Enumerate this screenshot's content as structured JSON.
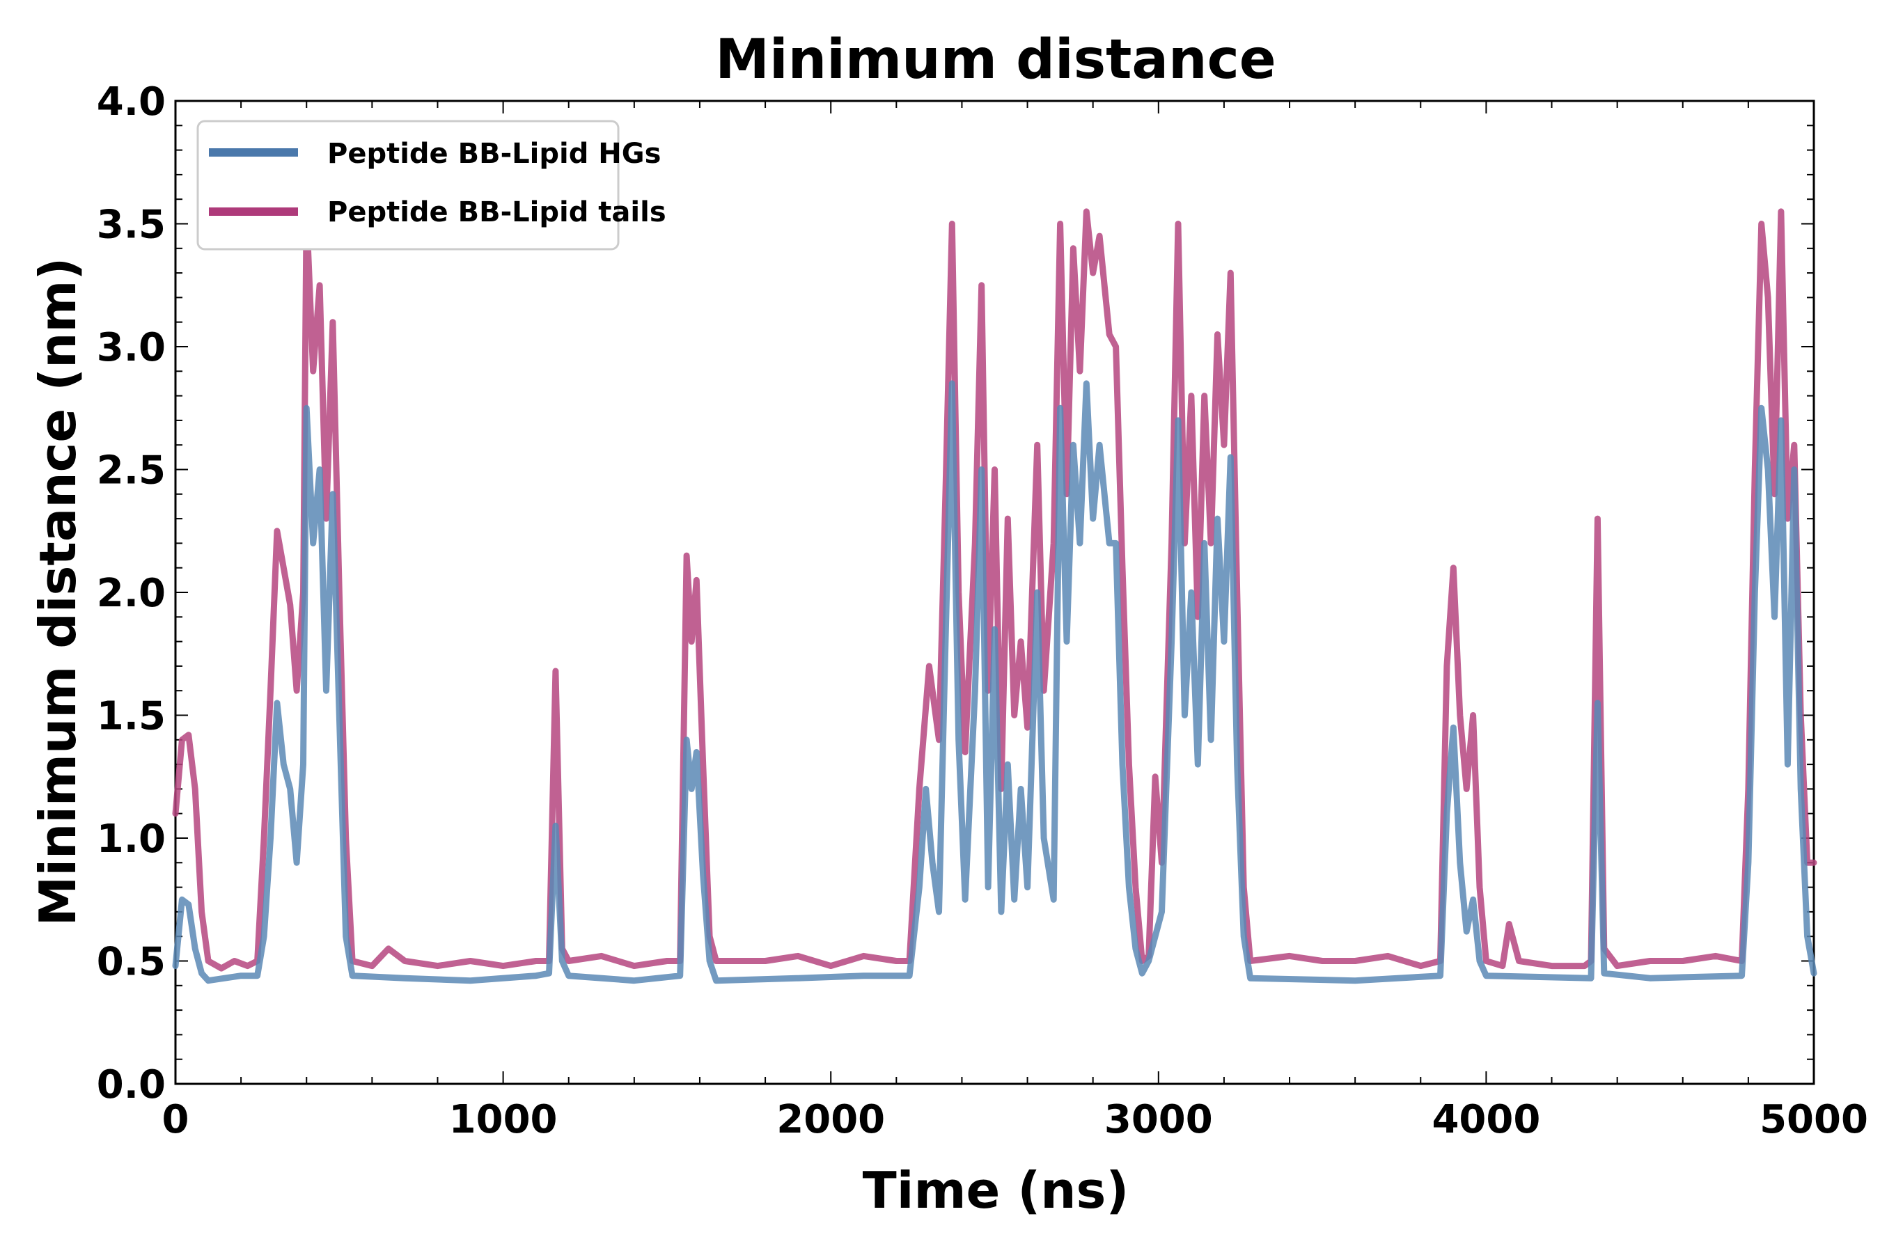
{
  "chart_data": {
    "type": "line",
    "title": "Minimum distance",
    "xlabel": "Time (ns)",
    "ylabel": "Minimum distance (nm)",
    "xlim": [
      0,
      5000
    ],
    "ylim": [
      0,
      4.0
    ],
    "x_ticks": [
      0,
      1000,
      2000,
      3000,
      4000,
      5000
    ],
    "x_tick_labels": [
      "0",
      "1000",
      "2000",
      "3000",
      "4000",
      "5000"
    ],
    "y_ticks": [
      0,
      0.5,
      1.0,
      1.5,
      2.0,
      2.5,
      3.0,
      3.5,
      4.0
    ],
    "y_tick_labels": [
      "0.0",
      "0.5",
      "1.0",
      "1.5",
      "2.0",
      "2.5",
      "3.0",
      "3.5",
      "4.0"
    ],
    "grid": false,
    "legend_position": "top-left",
    "series": [
      {
        "name": "Peptide BB-Lipid tails",
        "color": "#b5457f",
        "points": [
          [
            0,
            1.1
          ],
          [
            20,
            1.4
          ],
          [
            40,
            1.42
          ],
          [
            60,
            1.2
          ],
          [
            80,
            0.7
          ],
          [
            100,
            0.5
          ],
          [
            140,
            0.47
          ],
          [
            180,
            0.5
          ],
          [
            220,
            0.48
          ],
          [
            250,
            0.5
          ],
          [
            270,
            1.0
          ],
          [
            290,
            1.6
          ],
          [
            310,
            2.25
          ],
          [
            330,
            2.1
          ],
          [
            350,
            1.95
          ],
          [
            370,
            1.6
          ],
          [
            390,
            2.0
          ],
          [
            400,
            3.55
          ],
          [
            420,
            2.9
          ],
          [
            440,
            3.25
          ],
          [
            460,
            2.3
          ],
          [
            480,
            3.1
          ],
          [
            500,
            2.0
          ],
          [
            520,
            1.0
          ],
          [
            540,
            0.5
          ],
          [
            600,
            0.48
          ],
          [
            650,
            0.55
          ],
          [
            700,
            0.5
          ],
          [
            800,
            0.48
          ],
          [
            900,
            0.5
          ],
          [
            1000,
            0.48
          ],
          [
            1100,
            0.5
          ],
          [
            1140,
            0.5
          ],
          [
            1160,
            1.68
          ],
          [
            1180,
            0.55
          ],
          [
            1200,
            0.5
          ],
          [
            1300,
            0.52
          ],
          [
            1400,
            0.48
          ],
          [
            1500,
            0.5
          ],
          [
            1540,
            0.5
          ],
          [
            1560,
            2.15
          ],
          [
            1575,
            1.8
          ],
          [
            1590,
            2.05
          ],
          [
            1610,
            1.3
          ],
          [
            1630,
            0.6
          ],
          [
            1650,
            0.5
          ],
          [
            1800,
            0.5
          ],
          [
            1900,
            0.52
          ],
          [
            2000,
            0.48
          ],
          [
            2100,
            0.52
          ],
          [
            2200,
            0.5
          ],
          [
            2240,
            0.5
          ],
          [
            2270,
            1.2
          ],
          [
            2300,
            1.7
          ],
          [
            2330,
            1.4
          ],
          [
            2350,
            2.4
          ],
          [
            2370,
            3.5
          ],
          [
            2390,
            2.0
          ],
          [
            2410,
            1.35
          ],
          [
            2440,
            2.2
          ],
          [
            2460,
            3.25
          ],
          [
            2480,
            1.6
          ],
          [
            2500,
            2.5
          ],
          [
            2520,
            1.2
          ],
          [
            2540,
            2.3
          ],
          [
            2560,
            1.5
          ],
          [
            2580,
            1.8
          ],
          [
            2600,
            1.45
          ],
          [
            2630,
            2.6
          ],
          [
            2650,
            1.6
          ],
          [
            2680,
            2.2
          ],
          [
            2700,
            3.5
          ],
          [
            2720,
            2.4
          ],
          [
            2740,
            3.4
          ],
          [
            2760,
            2.9
          ],
          [
            2780,
            3.55
          ],
          [
            2800,
            3.3
          ],
          [
            2820,
            3.45
          ],
          [
            2850,
            3.05
          ],
          [
            2870,
            3.0
          ],
          [
            2890,
            2.1
          ],
          [
            2910,
            1.3
          ],
          [
            2930,
            0.8
          ],
          [
            2950,
            0.5
          ],
          [
            2970,
            0.52
          ],
          [
            2990,
            1.25
          ],
          [
            3010,
            0.9
          ],
          [
            3040,
            2.2
          ],
          [
            3060,
            3.5
          ],
          [
            3080,
            2.2
          ],
          [
            3100,
            2.8
          ],
          [
            3120,
            1.9
          ],
          [
            3140,
            2.8
          ],
          [
            3160,
            2.2
          ],
          [
            3180,
            3.05
          ],
          [
            3200,
            2.6
          ],
          [
            3220,
            3.3
          ],
          [
            3240,
            2.0
          ],
          [
            3260,
            0.8
          ],
          [
            3280,
            0.5
          ],
          [
            3400,
            0.52
          ],
          [
            3500,
            0.5
          ],
          [
            3600,
            0.5
          ],
          [
            3700,
            0.52
          ],
          [
            3800,
            0.48
          ],
          [
            3860,
            0.5
          ],
          [
            3880,
            1.7
          ],
          [
            3900,
            2.1
          ],
          [
            3920,
            1.5
          ],
          [
            3940,
            1.2
          ],
          [
            3960,
            1.5
          ],
          [
            3980,
            0.8
          ],
          [
            4000,
            0.5
          ],
          [
            4050,
            0.48
          ],
          [
            4070,
            0.65
          ],
          [
            4100,
            0.5
          ],
          [
            4200,
            0.48
          ],
          [
            4300,
            0.48
          ],
          [
            4320,
            0.5
          ],
          [
            4340,
            2.3
          ],
          [
            4360,
            0.55
          ],
          [
            4400,
            0.48
          ],
          [
            4500,
            0.5
          ],
          [
            4600,
            0.5
          ],
          [
            4700,
            0.52
          ],
          [
            4780,
            0.5
          ],
          [
            4800,
            1.2
          ],
          [
            4820,
            2.5
          ],
          [
            4840,
            3.5
          ],
          [
            4860,
            3.2
          ],
          [
            4880,
            2.4
          ],
          [
            4900,
            3.55
          ],
          [
            4920,
            2.3
          ],
          [
            4940,
            2.6
          ],
          [
            4960,
            1.5
          ],
          [
            4980,
            0.9
          ],
          [
            5000,
            0.9
          ]
        ]
      },
      {
        "name": "Peptide BB-Lipid HGs",
        "color": "#5b88b5",
        "points": [
          [
            0,
            0.48
          ],
          [
            20,
            0.75
          ],
          [
            40,
            0.73
          ],
          [
            60,
            0.55
          ],
          [
            80,
            0.45
          ],
          [
            100,
            0.42
          ],
          [
            200,
            0.44
          ],
          [
            250,
            0.44
          ],
          [
            270,
            0.6
          ],
          [
            290,
            1.0
          ],
          [
            310,
            1.55
          ],
          [
            330,
            1.3
          ],
          [
            350,
            1.2
          ],
          [
            370,
            0.9
          ],
          [
            390,
            1.3
          ],
          [
            400,
            2.75
          ],
          [
            420,
            2.2
          ],
          [
            440,
            2.5
          ],
          [
            460,
            1.6
          ],
          [
            480,
            2.4
          ],
          [
            500,
            1.5
          ],
          [
            520,
            0.6
          ],
          [
            540,
            0.44
          ],
          [
            700,
            0.43
          ],
          [
            900,
            0.42
          ],
          [
            1100,
            0.44
          ],
          [
            1140,
            0.45
          ],
          [
            1160,
            1.05
          ],
          [
            1180,
            0.5
          ],
          [
            1200,
            0.44
          ],
          [
            1400,
            0.42
          ],
          [
            1540,
            0.44
          ],
          [
            1560,
            1.4
          ],
          [
            1575,
            1.2
          ],
          [
            1590,
            1.35
          ],
          [
            1610,
            0.85
          ],
          [
            1630,
            0.5
          ],
          [
            1650,
            0.42
          ],
          [
            1900,
            0.43
          ],
          [
            2100,
            0.44
          ],
          [
            2240,
            0.44
          ],
          [
            2270,
            0.8
          ],
          [
            2290,
            1.2
          ],
          [
            2310,
            0.9
          ],
          [
            2330,
            0.7
          ],
          [
            2350,
            1.8
          ],
          [
            2370,
            2.85
          ],
          [
            2390,
            1.4
          ],
          [
            2410,
            0.75
          ],
          [
            2440,
            1.6
          ],
          [
            2460,
            2.5
          ],
          [
            2480,
            0.8
          ],
          [
            2500,
            1.85
          ],
          [
            2520,
            0.7
          ],
          [
            2540,
            1.3
          ],
          [
            2560,
            0.75
          ],
          [
            2580,
            1.2
          ],
          [
            2600,
            0.8
          ],
          [
            2630,
            2.0
          ],
          [
            2650,
            1.0
          ],
          [
            2680,
            0.75
          ],
          [
            2700,
            2.75
          ],
          [
            2720,
            1.8
          ],
          [
            2740,
            2.6
          ],
          [
            2760,
            2.2
          ],
          [
            2780,
            2.85
          ],
          [
            2800,
            2.3
          ],
          [
            2820,
            2.6
          ],
          [
            2850,
            2.2
          ],
          [
            2870,
            2.2
          ],
          [
            2890,
            1.3
          ],
          [
            2910,
            0.8
          ],
          [
            2930,
            0.55
          ],
          [
            2950,
            0.45
          ],
          [
            2970,
            0.5
          ],
          [
            2990,
            0.6
          ],
          [
            3010,
            0.7
          ],
          [
            3040,
            1.8
          ],
          [
            3060,
            2.7
          ],
          [
            3080,
            1.5
          ],
          [
            3100,
            2.0
          ],
          [
            3120,
            1.3
          ],
          [
            3140,
            2.2
          ],
          [
            3160,
            1.4
          ],
          [
            3180,
            2.3
          ],
          [
            3200,
            1.8
          ],
          [
            3220,
            2.55
          ],
          [
            3240,
            1.3
          ],
          [
            3260,
            0.6
          ],
          [
            3280,
            0.43
          ],
          [
            3600,
            0.42
          ],
          [
            3860,
            0.44
          ],
          [
            3880,
            1.1
          ],
          [
            3900,
            1.45
          ],
          [
            3920,
            0.9
          ],
          [
            3940,
            0.62
          ],
          [
            3960,
            0.75
          ],
          [
            3980,
            0.5
          ],
          [
            4000,
            0.44
          ],
          [
            4320,
            0.43
          ],
          [
            4340,
            1.55
          ],
          [
            4360,
            0.45
          ],
          [
            4500,
            0.43
          ],
          [
            4780,
            0.44
          ],
          [
            4800,
            0.9
          ],
          [
            4820,
            2.0
          ],
          [
            4840,
            2.75
          ],
          [
            4860,
            2.5
          ],
          [
            4880,
            1.9
          ],
          [
            4900,
            2.7
          ],
          [
            4920,
            1.3
          ],
          [
            4940,
            2.5
          ],
          [
            4960,
            1.2
          ],
          [
            4980,
            0.6
          ],
          [
            5000,
            0.45
          ]
        ]
      }
    ],
    "legend": {
      "entries": [
        {
          "label": "Peptide BB-Lipid HGs",
          "color": "#4a78ab"
        },
        {
          "label": "Peptide BB-Lipid tails",
          "color": "#ae3a7a"
        }
      ]
    }
  }
}
